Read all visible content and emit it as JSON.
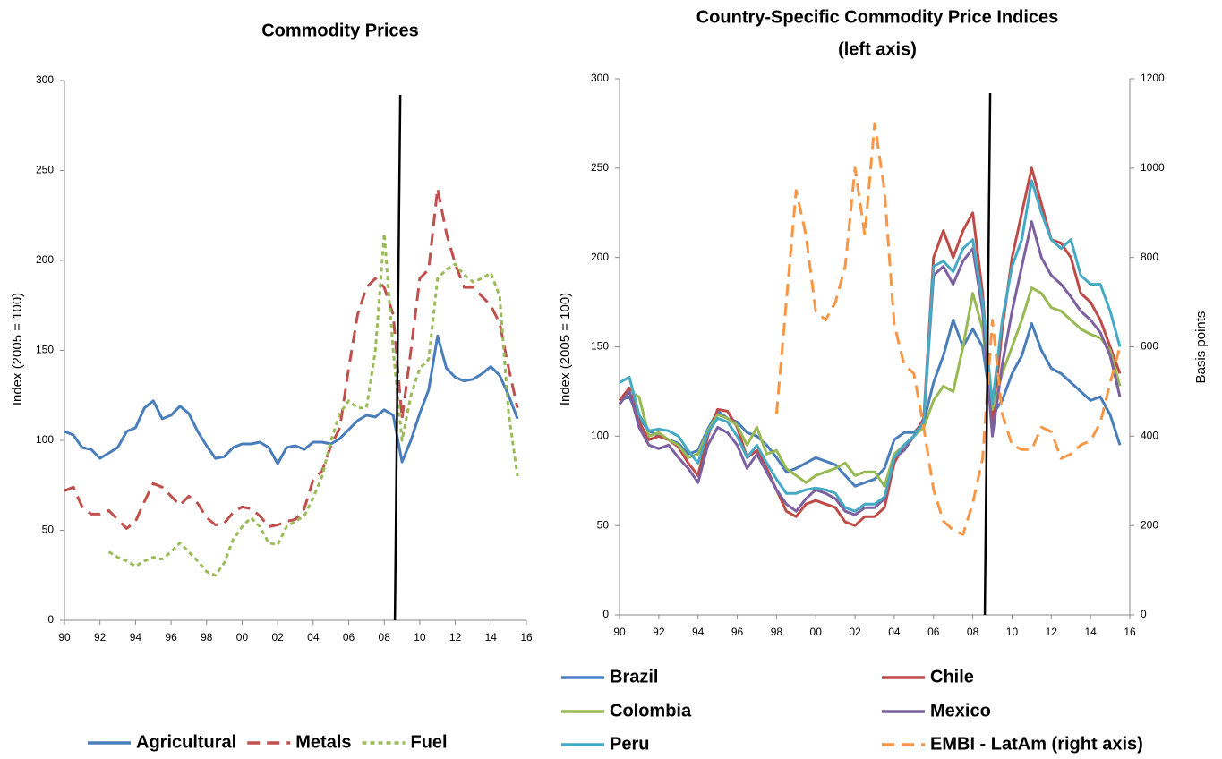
{
  "charts": [
    {
      "chart_data": {
        "type": "line",
        "title": "Commodity Prices",
        "y_label": "Index (2005 = 100)",
        "xlim": [
          1990,
          2016
        ],
        "ylim": [
          0,
          300
        ],
        "yticks": [
          0,
          50,
          100,
          150,
          200,
          250,
          300
        ],
        "xticks": [
          {
            "value": 1990,
            "label": "90"
          },
          {
            "value": 1992,
            "label": "92"
          },
          {
            "value": 1994,
            "label": "94"
          },
          {
            "value": 1996,
            "label": "96"
          },
          {
            "value": 1998,
            "label": "98"
          },
          {
            "value": 2000,
            "label": "00"
          },
          {
            "value": 2002,
            "label": "02"
          },
          {
            "value": 2004,
            "label": "04"
          },
          {
            "value": 2006,
            "label": "06"
          },
          {
            "value": 2008,
            "label": "08"
          },
          {
            "value": 2010,
            "label": "10"
          },
          {
            "value": 2012,
            "label": "12"
          },
          {
            "value": 2014,
            "label": "14"
          },
          {
            "value": 2016,
            "label": "16"
          }
        ],
        "vline_x": 2008.75,
        "x": [
          1990,
          1990.5,
          1991,
          1991.5,
          1992,
          1992.5,
          1993,
          1993.5,
          1994,
          1994.5,
          1995,
          1995.5,
          1996,
          1996.5,
          1997,
          1997.5,
          1998,
          1998.5,
          1999,
          1999.5,
          2000,
          2000.5,
          2001,
          2001.5,
          2002,
          2002.5,
          2003,
          2003.5,
          2004,
          2004.5,
          2005,
          2005.5,
          2006,
          2006.5,
          2007,
          2007.5,
          2008,
          2008.5,
          2009,
          2009.5,
          2010,
          2010.5,
          2011,
          2011.5,
          2012,
          2012.5,
          2013,
          2013.5,
          2014,
          2014.5,
          2015,
          2015.5
        ],
        "series": [
          {
            "name": "Agricultural",
            "color": "#4a7ebb",
            "dash": "solid",
            "values": [
              105,
              103,
              96,
              95,
              90,
              93,
              96,
              105,
              107,
              118,
              122,
              112,
              114,
              119,
              115,
              105,
              97,
              90,
              91,
              96,
              98,
              98,
              99,
              96,
              87,
              96,
              97,
              95,
              99,
              99,
              98,
              101,
              106,
              111,
              114,
              113,
              117,
              114,
              88,
              100,
              115,
              128,
              158,
              140,
              135,
              133,
              134,
              137,
              141,
              136,
              125,
              112
            ]
          },
          {
            "name": "Metals",
            "color": "#c0504d",
            "dash": "dashed",
            "values": [
              72,
              74,
              63,
              59,
              59,
              61,
              56,
              51,
              55,
              66,
              76,
              74,
              69,
              64,
              69,
              65,
              57,
              53,
              54,
              60,
              63,
              62,
              58,
              52,
              53,
              55,
              56,
              62,
              78,
              83,
              97,
              107,
              140,
              170,
              185,
              190,
              185,
              170,
              112,
              150,
              190,
              195,
              240,
              215,
              198,
              185,
              185,
              180,
              175,
              165,
              140,
              118
            ]
          },
          {
            "name": "Fuel",
            "color": "#9bbb59",
            "dash": "dotted",
            "values": [
              null,
              null,
              null,
              null,
              null,
              38,
              35,
              33,
              30,
              33,
              35,
              34,
              38,
              43,
              38,
              33,
              27,
              25,
              32,
              45,
              52,
              57,
              52,
              43,
              42,
              52,
              55,
              58,
              68,
              80,
              100,
              115,
              122,
              118,
              118,
              150,
              215,
              150,
              100,
              125,
              140,
              145,
              190,
              195,
              198,
              192,
              188,
              190,
              193,
              180,
              115,
              80
            ]
          }
        ]
      }
    },
    {
      "chart_data": {
        "type": "line",
        "title": "Country-Specific Commodity Price Indices",
        "subtitle": "(left axis)",
        "y_label": "Index (2005 = 100)",
        "y2_label": "Basis points",
        "xlim": [
          1990,
          2016
        ],
        "ylim": [
          0,
          300
        ],
        "yticks": [
          0,
          50,
          100,
          150,
          200,
          250,
          300
        ],
        "y2lim": [
          0,
          1200
        ],
        "y2ticks": [
          0,
          200,
          400,
          600,
          800,
          1000,
          1200
        ],
        "xticks": [
          {
            "value": 1990,
            "label": "90"
          },
          {
            "value": 1992,
            "label": "92"
          },
          {
            "value": 1994,
            "label": "94"
          },
          {
            "value": 1996,
            "label": "96"
          },
          {
            "value": 1998,
            "label": "98"
          },
          {
            "value": 2000,
            "label": "00"
          },
          {
            "value": 2002,
            "label": "02"
          },
          {
            "value": 2004,
            "label": "04"
          },
          {
            "value": 2006,
            "label": "06"
          },
          {
            "value": 2008,
            "label": "08"
          },
          {
            "value": 2010,
            "label": "10"
          },
          {
            "value": 2012,
            "label": "12"
          },
          {
            "value": 2014,
            "label": "14"
          },
          {
            "value": 2016,
            "label": "16"
          }
        ],
        "vline_x": 2008.75,
        "x": [
          1990,
          1990.5,
          1991,
          1991.5,
          1992,
          1992.5,
          1993,
          1993.5,
          1994,
          1994.5,
          1995,
          1995.5,
          1996,
          1996.5,
          1997,
          1997.5,
          1998,
          1998.5,
          1999,
          1999.5,
          2000,
          2000.5,
          2001,
          2001.5,
          2002,
          2002.5,
          2003,
          2003.5,
          2004,
          2004.5,
          2005,
          2005.5,
          2006,
          2006.5,
          2007,
          2007.5,
          2008,
          2008.5,
          2009,
          2009.5,
          2010,
          2010.5,
          2011,
          2011.5,
          2012,
          2012.5,
          2013,
          2013.5,
          2014,
          2014.5,
          2015,
          2015.5
        ],
        "series": [
          {
            "name": "Brazil",
            "color": "#4a7ebb",
            "dash": "solid",
            "values": [
              120,
              122,
              110,
              103,
              100,
              98,
              96,
              90,
              92,
              104,
              114,
              110,
              108,
              102,
              100,
              95,
              88,
              80,
              82,
              85,
              88,
              86,
              84,
              78,
              72,
              74,
              76,
              82,
              98,
              102,
              102,
              108,
              130,
              145,
              165,
              150,
              160,
              150,
              112,
              120,
              135,
              145,
              163,
              148,
              138,
              135,
              130,
              125,
              120,
              122,
              112,
              95
            ]
          },
          {
            "name": "Chile",
            "color": "#be4b48",
            "dash": "solid",
            "values": [
              120,
              127,
              108,
              98,
              100,
              98,
              94,
              85,
              78,
              100,
              115,
              114,
              105,
              88,
              92,
              82,
              70,
              58,
              55,
              62,
              64,
              62,
              60,
              52,
              50,
              55,
              55,
              60,
              85,
              95,
              100,
              110,
              200,
              215,
              200,
              215,
              225,
              180,
              105,
              160,
              200,
              225,
              250,
              230,
              210,
              208,
              200,
              180,
              175,
              165,
              150,
              135
            ]
          },
          {
            "name": "Colombia",
            "color": "#98b954",
            "dash": "solid",
            "values": [
              118,
              125,
              122,
              100,
              102,
              98,
              95,
              88,
              90,
              103,
              112,
              110,
              106,
              95,
              105,
              90,
              92,
              82,
              78,
              74,
              78,
              80,
              82,
              85,
              78,
              80,
              80,
              72,
              90,
              95,
              100,
              105,
              120,
              128,
              125,
              150,
              180,
              160,
              115,
              135,
              150,
              165,
              183,
              180,
              172,
              170,
              165,
              160,
              157,
              155,
              148,
              128
            ]
          },
          {
            "name": "Mexico",
            "color": "#7d60a0",
            "dash": "solid",
            "values": [
              118,
              125,
              105,
              95,
              93,
              95,
              88,
              82,
              74,
              95,
              105,
              102,
              95,
              82,
              90,
              80,
              70,
              62,
              58,
              65,
              70,
              68,
              65,
              58,
              56,
              60,
              60,
              65,
              88,
              92,
              100,
              108,
              190,
              195,
              185,
              198,
              205,
              170,
              100,
              140,
              170,
              195,
              220,
              200,
              190,
              185,
              178,
              170,
              165,
              158,
              145,
              122
            ]
          },
          {
            "name": "Peru",
            "color": "#46aac5",
            "dash": "solid",
            "values": [
              130,
              133,
              112,
              103,
              104,
              103,
              100,
              92,
              85,
              102,
              110,
              108,
              100,
              88,
              95,
              85,
              76,
              68,
              68,
              70,
              71,
              70,
              68,
              60,
              58,
              62,
              62,
              66,
              88,
              95,
              100,
              108,
              195,
              198,
              192,
              205,
              210,
              175,
              118,
              165,
              195,
              210,
              243,
              225,
              210,
              205,
              210,
              190,
              185,
              185,
              170,
              150
            ]
          },
          {
            "name": "EMBI - LatAm (right axis)",
            "color": "#f79646",
            "dash": "dashed",
            "axis": "y2",
            "values": [
              null,
              null,
              null,
              null,
              null,
              null,
              null,
              null,
              null,
              null,
              null,
              null,
              null,
              null,
              null,
              null,
              450,
              700,
              950,
              850,
              680,
              660,
              700,
              780,
              1000,
              850,
              1100,
              950,
              650,
              560,
              540,
              420,
              280,
              210,
              190,
              180,
              250,
              350,
              660,
              450,
              380,
              370,
              370,
              420,
              410,
              350,
              360,
              380,
              390,
              430,
              520,
              600
            ]
          }
        ]
      }
    }
  ]
}
